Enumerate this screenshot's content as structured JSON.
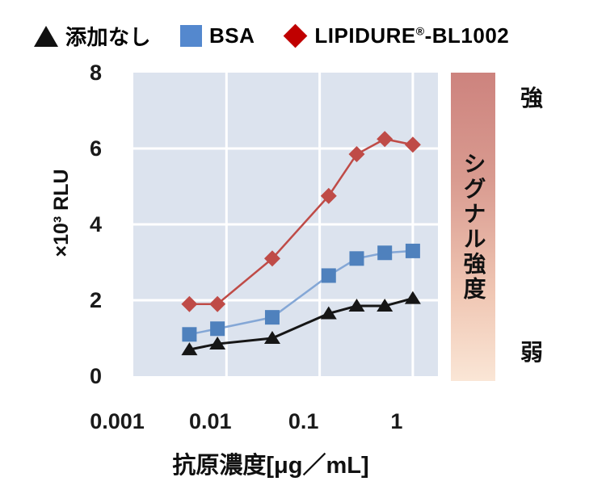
{
  "legend": {
    "items": [
      {
        "marker": "black-triangle",
        "label": "添加なし",
        "color": "#111111"
      },
      {
        "marker": "blue-square",
        "label": "BSA",
        "color": "#5488ce"
      },
      {
        "marker": "red-diamond",
        "label": "LIPIDURE®-BL1002",
        "color": "#c00000"
      }
    ],
    "lipidure_pre": "LIPIDURE",
    "lipidure_reg": "®",
    "lipidure_post": "-BL1002"
  },
  "chart_data": {
    "type": "line",
    "x_scale": "log",
    "x": [
      0.004,
      0.008,
      0.031,
      0.125,
      0.25,
      0.5,
      1
    ],
    "series": [
      {
        "name": "添加なし",
        "marker": "triangle",
        "marker_color": "#161616",
        "line_color": "#161616",
        "line_width": 3,
        "values": [
          0.7,
          0.85,
          1.0,
          1.65,
          1.85,
          1.85,
          2.05
        ]
      },
      {
        "name": "BSA",
        "marker": "square",
        "marker_color": "#4f81bd",
        "line_color": "#84a7d6",
        "line_width": 2.5,
        "values": [
          1.1,
          1.25,
          1.55,
          2.65,
          3.1,
          3.25,
          3.3
        ]
      },
      {
        "name": "LIPIDURE®-BL1002",
        "marker": "diamond",
        "marker_color": "#bf4b47",
        "line_color": "#bf4b47",
        "line_width": 2.5,
        "values": [
          1.9,
          1.9,
          3.1,
          4.75,
          5.85,
          6.25,
          6.1
        ]
      }
    ],
    "xlabel": "抗原濃度[μg／mL]",
    "ylabel": "×10³ RLU",
    "x_ticks": [
      "0.001",
      "0.01",
      "0.1",
      "1"
    ],
    "x_tick_values": [
      0.001,
      0.01,
      0.1,
      1
    ],
    "y_ticks": [
      "0",
      "2",
      "4",
      "6",
      "8"
    ],
    "y_tick_values": [
      0,
      2,
      4,
      6,
      8
    ],
    "xlim": [
      0.001,
      1.8
    ],
    "ylim": [
      0,
      8
    ],
    "grid": true,
    "plot_bg": "#dce3ee",
    "grid_color": "#ffffff",
    "legend_position": "top"
  },
  "intensity_bar": {
    "label": "シグナル強度",
    "top_label": "強",
    "bottom_label": "弱",
    "gradient_top": "#cd837e",
    "gradient_bottom": "#fae6d6"
  }
}
